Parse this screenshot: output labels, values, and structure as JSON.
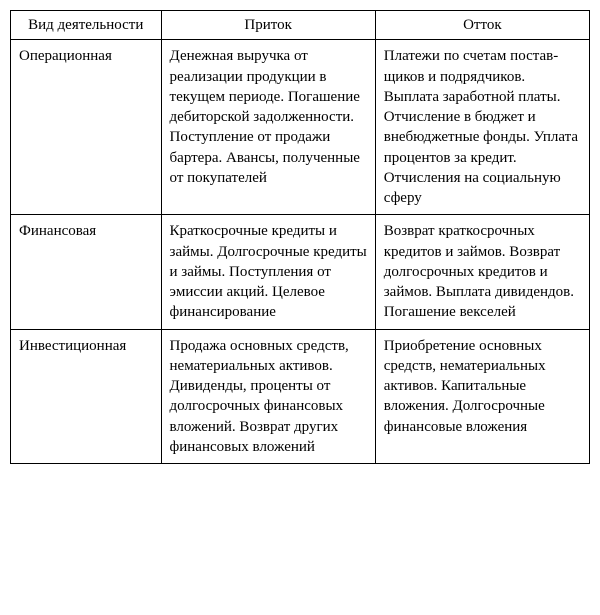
{
  "table": {
    "background_color": "#ffffff",
    "border_color": "#000000",
    "text_color": "#000000",
    "font_size": 15,
    "column_widths_pct": [
      26,
      37,
      37
    ],
    "headers": {
      "activity": "Вид деятельности",
      "inflow": "Приток",
      "outflow": "Отток"
    },
    "rows": [
      {
        "activity": "Операционная",
        "inflow": "Денежная выручка от реализации продук­ции в текущем периоде. Погашение дебитор­ской задолженности. Поступление от прода­жи бартера.\nАвансы, полученные от покупателей",
        "outflow": "Платежи по счетам постав­щиков и подрядчиков. Выплата заработной платы.\nОтчисление в бюджет и внебюджетные фонды. Уплата процентов за кредит.\nОтчисления на социаль­ную сферу"
      },
      {
        "activity": "Финансовая",
        "inflow": "Краткосрочные креди­ты и займы.\nДолгосрочные кредиты и займы.\nПоступления от эмис­сии акций.\nЦелевое финансиро­вание",
        "outflow": "Возврат краткосрочных кредитов и займов. Возврат долгосрочных кредитов и займов.\nВыплата дивидендов. Погашение векселей"
      },
      {
        "activity": "Инвестиционная",
        "inflow": "Продажа основных средств, нематериаль­ных активов.\nДивиденды, проценты от долгосрочных фи­нансовых вложений. Возврат других финан­совых вложений",
        "outflow": "Приобретение основных средств, нематериальных активов.\nКапитальные вложения. Долгосрочные финансо­вые вложения"
      }
    ]
  }
}
